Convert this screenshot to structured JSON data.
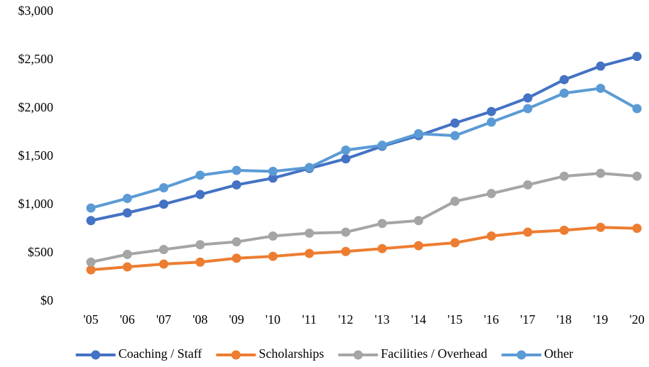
{
  "chart_data": {
    "type": "line",
    "categories": [
      "'05",
      "'06",
      "'07",
      "'08",
      "'09",
      "'10",
      "'11",
      "'12",
      "'13",
      "'14",
      "'15",
      "'16",
      "'17",
      "'18",
      "'19",
      "'20"
    ],
    "series": [
      {
        "name": "Coaching / Staff",
        "color": "#4472c4",
        "values": [
          840,
          920,
          1010,
          1110,
          1210,
          1280,
          1380,
          1480,
          1610,
          1720,
          1850,
          1970,
          2110,
          2300,
          2440,
          2540
        ]
      },
      {
        "name": "Scholarships",
        "color": "#ed7d31",
        "values": [
          330,
          360,
          390,
          410,
          450,
          470,
          500,
          520,
          550,
          580,
          610,
          680,
          720,
          740,
          770,
          760
        ]
      },
      {
        "name": "Facilities / Overhead",
        "color": "#a5a5a5",
        "values": [
          410,
          490,
          540,
          590,
          620,
          680,
          710,
          720,
          810,
          840,
          1040,
          1120,
          1210,
          1300,
          1330,
          1300
        ]
      },
      {
        "name": "Other",
        "color": "#5b9bd5",
        "values": [
          970,
          1070,
          1180,
          1310,
          1360,
          1350,
          1390,
          1570,
          1620,
          1740,
          1720,
          1860,
          2000,
          2160,
          2210,
          2000
        ]
      }
    ],
    "ylim": [
      0,
      3000
    ],
    "yticks": [
      {
        "value": 0,
        "label": "$0"
      },
      {
        "value": 500,
        "label": "$500"
      },
      {
        "value": 1000,
        "label": "$1,000"
      },
      {
        "value": 1500,
        "label": "$1,500"
      },
      {
        "value": 2000,
        "label": "$2,000"
      },
      {
        "value": 2500,
        "label": "$2,500"
      },
      {
        "value": 3000,
        "label": "$3,000"
      }
    ],
    "grid": false,
    "legend": "bottom"
  }
}
